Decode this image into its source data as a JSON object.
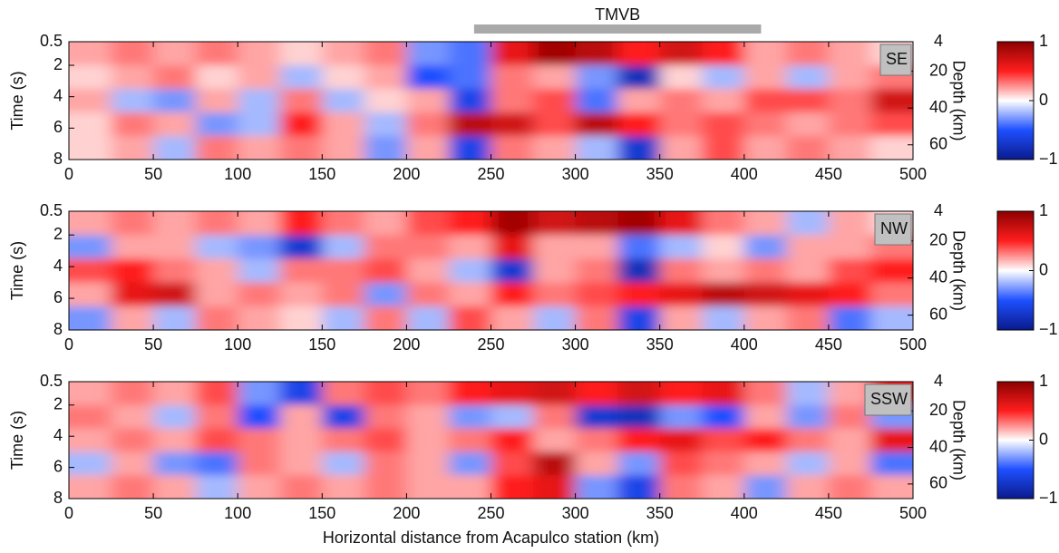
{
  "chart_data": [
    {
      "type": "heatmap",
      "label": "SE",
      "annotation": {
        "text": "TMVB",
        "x": [
          240,
          410
        ]
      },
      "ylabel": "Time (s)",
      "y2label": "Depth (km)",
      "xlim": [
        0,
        500
      ],
      "xticks": [
        0,
        50,
        100,
        150,
        200,
        250,
        300,
        350,
        400,
        450,
        500
      ],
      "ylim": [
        0.5,
        8
      ],
      "yticks": [
        0.5,
        2,
        4,
        6,
        8
      ],
      "y2lim": [
        4,
        68
      ],
      "y2ticks": [
        4,
        20,
        40,
        60
      ],
      "clim": [
        -1,
        1
      ],
      "cticks": [
        {
          "value": -1,
          "label": "−1"
        },
        0,
        1
      ],
      "colors": [
        "#0a1a8c",
        "#1e50ff",
        "#ffffff",
        "#ff1e1e",
        "#8c0000"
      ],
      "x": [
        12.5,
        37.5,
        62.5,
        87.5,
        112.5,
        137.5,
        162.5,
        187.5,
        212.5,
        237.5,
        262.5,
        287.5,
        312.5,
        337.5,
        362.5,
        387.5,
        412.5,
        437.5,
        462.5,
        487.5
      ],
      "y": [
        1.25,
        2.75,
        4.25,
        5.75,
        7.25
      ],
      "z": [
        [
          0.2,
          0.3,
          0.2,
          0.3,
          0.2,
          0.1,
          0.2,
          0.3,
          -0.3,
          -0.4,
          0.6,
          0.9,
          0.8,
          0.5,
          0.7,
          0.5,
          0.2,
          0.3,
          0.2,
          0.1
        ],
        [
          0.1,
          0.2,
          0.3,
          0.1,
          0.2,
          -0.2,
          0.1,
          0.2,
          -0.5,
          -0.4,
          0.3,
          0.2,
          -0.3,
          -0.8,
          0.1,
          -0.2,
          0.2,
          -0.2,
          0.2,
          0.3
        ],
        [
          0.2,
          -0.2,
          -0.3,
          0.2,
          -0.2,
          0.3,
          -0.2,
          0.1,
          0.2,
          -0.6,
          0.3,
          0.4,
          -0.4,
          0.2,
          0.3,
          0.2,
          0.4,
          0.4,
          0.3,
          0.7
        ],
        [
          0.1,
          0.3,
          0.2,
          -0.3,
          -0.2,
          0.5,
          0.2,
          -0.2,
          0.3,
          0.8,
          0.7,
          0.4,
          0.8,
          0.5,
          0.3,
          0.4,
          0.3,
          0.2,
          0.3,
          0.4
        ],
        [
          0.1,
          0.2,
          -0.2,
          0.3,
          0.2,
          0.3,
          0.2,
          -0.3,
          0.2,
          -0.6,
          0.3,
          0.2,
          -0.2,
          -0.7,
          0.2,
          0.4,
          0.2,
          0.3,
          0.2,
          0.1
        ]
      ]
    },
    {
      "type": "heatmap",
      "label": "NW",
      "ylabel": "Time (s)",
      "y2label": "Depth (km)",
      "xlim": [
        0,
        500
      ],
      "xticks": [
        0,
        50,
        100,
        150,
        200,
        250,
        300,
        350,
        400,
        450,
        500
      ],
      "ylim": [
        0.5,
        8
      ],
      "yticks": [
        0.5,
        2,
        4,
        6,
        8
      ],
      "y2lim": [
        4,
        68
      ],
      "y2ticks": [
        4,
        20,
        40,
        60
      ],
      "clim": [
        -1,
        1
      ],
      "cticks": [
        {
          "value": -1,
          "label": "−1"
        },
        0,
        1
      ],
      "colors": [
        "#0a1a8c",
        "#1e50ff",
        "#ffffff",
        "#ff1e1e",
        "#8c0000"
      ],
      "x": [
        12.5,
        37.5,
        62.5,
        87.5,
        112.5,
        137.5,
        162.5,
        187.5,
        212.5,
        237.5,
        262.5,
        287.5,
        312.5,
        337.5,
        362.5,
        387.5,
        412.5,
        437.5,
        462.5,
        487.5
      ],
      "y": [
        1.25,
        2.75,
        4.25,
        5.75,
        7.25
      ],
      "z": [
        [
          0.2,
          0.3,
          0.2,
          0.3,
          0.2,
          0.5,
          0.3,
          0.2,
          0.4,
          0.5,
          0.9,
          0.7,
          0.8,
          0.9,
          0.6,
          0.3,
          0.2,
          -0.2,
          0.2,
          0.1
        ],
        [
          -0.3,
          0.2,
          0.2,
          -0.2,
          -0.3,
          -0.7,
          -0.2,
          0.3,
          0.3,
          0.2,
          0.6,
          0.2,
          0.2,
          -0.4,
          -0.2,
          0.1,
          -0.3,
          0.2,
          0.2,
          0.3
        ],
        [
          0.4,
          0.5,
          0.3,
          0.2,
          -0.2,
          0.3,
          0.3,
          0.4,
          0.2,
          -0.2,
          -0.7,
          0.2,
          0.3,
          -0.8,
          0.3,
          0.2,
          0.3,
          0.2,
          0.4,
          0.5
        ],
        [
          0.2,
          0.6,
          0.7,
          0.2,
          0.3,
          0.2,
          0.3,
          -0.3,
          0.3,
          0.2,
          0.5,
          0.3,
          0.4,
          0.5,
          0.6,
          0.8,
          0.7,
          0.6,
          0.5,
          0.3
        ],
        [
          -0.3,
          0.2,
          -0.2,
          0.3,
          0.2,
          0.1,
          -0.2,
          0.3,
          -0.2,
          0.4,
          0.2,
          -0.2,
          0.3,
          -0.6,
          0.2,
          -0.2,
          0.2,
          0.3,
          -0.4,
          -0.2
        ]
      ]
    },
    {
      "type": "heatmap",
      "label": "SSW",
      "ylabel": "Time (s)",
      "y2label": "Depth (km)",
      "xlabel": "Horizontal distance from Acapulco station (km)",
      "xlim": [
        0,
        500
      ],
      "xticks": [
        0,
        50,
        100,
        150,
        200,
        250,
        300,
        350,
        400,
        450,
        500
      ],
      "ylim": [
        0.5,
        8
      ],
      "yticks": [
        0.5,
        2,
        4,
        6,
        8
      ],
      "y2lim": [
        4,
        68
      ],
      "y2ticks": [
        4,
        20,
        40,
        60
      ],
      "clim": [
        -1,
        1
      ],
      "cticks": [
        {
          "value": -1,
          "label": "−1"
        },
        0,
        1
      ],
      "colors": [
        "#0a1a8c",
        "#1e50ff",
        "#ffffff",
        "#ff1e1e",
        "#8c0000"
      ],
      "x": [
        12.5,
        37.5,
        62.5,
        87.5,
        112.5,
        137.5,
        162.5,
        187.5,
        212.5,
        237.5,
        262.5,
        287.5,
        312.5,
        337.5,
        362.5,
        387.5,
        412.5,
        437.5,
        462.5,
        487.5
      ],
      "y": [
        1.25,
        2.75,
        4.25,
        5.75,
        7.25
      ],
      "z": [
        [
          0.2,
          0.3,
          0.2,
          0.4,
          -0.3,
          -0.6,
          0.3,
          0.4,
          0.3,
          0.5,
          0.6,
          0.7,
          0.5,
          0.7,
          0.5,
          0.6,
          0.3,
          -0.2,
          0.2,
          0.5
        ],
        [
          0.3,
          0.2,
          -0.2,
          0.3,
          -0.5,
          0.2,
          -0.6,
          0.3,
          0.2,
          -0.3,
          -0.2,
          0.3,
          -0.7,
          -0.8,
          -0.3,
          -0.5,
          0.2,
          -0.3,
          0.3,
          -0.3
        ],
        [
          0.2,
          0.3,
          0.2,
          0.4,
          0.3,
          0.2,
          0.3,
          0.4,
          0.2,
          0.3,
          0.5,
          0.2,
          0.3,
          0.5,
          0.6,
          0.4,
          0.5,
          0.3,
          0.2,
          0.6
        ],
        [
          -0.2,
          0.2,
          -0.3,
          -0.4,
          0.3,
          0.2,
          -0.2,
          0.3,
          0.2,
          -0.3,
          0.4,
          0.8,
          0.2,
          -0.3,
          0.4,
          0.3,
          0.2,
          -0.2,
          0.2,
          -0.4
        ],
        [
          0.2,
          0.3,
          0.2,
          -0.2,
          0.2,
          0.3,
          0.2,
          0.3,
          0.2,
          0.2,
          0.5,
          0.6,
          -0.3,
          -0.6,
          0.3,
          0.2,
          -0.3,
          0.2,
          0.3,
          0.2
        ]
      ]
    }
  ]
}
